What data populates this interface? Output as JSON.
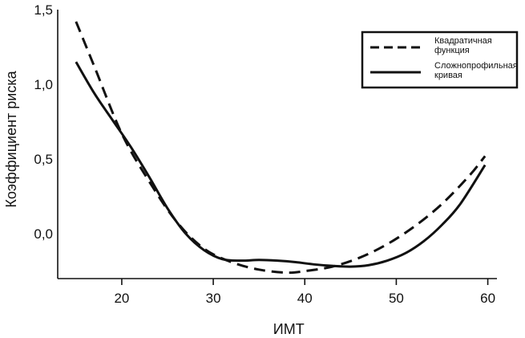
{
  "chart_data": {
    "type": "line",
    "title": "",
    "xlabel": "ИМТ",
    "ylabel": "Коэффициент риска",
    "xlim": [
      13,
      61
    ],
    "ylim": [
      -0.3,
      1.5
    ],
    "xticks": [
      20,
      30,
      40,
      50,
      60
    ],
    "yticks": [
      0.0,
      0.5,
      1.0,
      1.5
    ],
    "xtick_labels": [
      "20",
      "30",
      "40",
      "50",
      "60"
    ],
    "ytick_labels": [
      "0,0",
      "0,5",
      "1,0",
      "1,5"
    ],
    "grid": false,
    "legend_position": "top-right",
    "series": [
      {
        "name": "Квадратичная функция",
        "name_lines": [
          "Квадратичная",
          "функция"
        ],
        "style": "dashed",
        "color": "#111111",
        "x": [
          15,
          17,
          20,
          23,
          26,
          29,
          32,
          35,
          38,
          40,
          43,
          46,
          49,
          52,
          55,
          58,
          59.7
        ],
        "y": [
          1.42,
          1.12,
          0.67,
          0.35,
          0.08,
          -0.1,
          -0.19,
          -0.24,
          -0.26,
          -0.25,
          -0.22,
          -0.16,
          -0.07,
          0.05,
          0.2,
          0.39,
          0.52
        ]
      },
      {
        "name": "Сложнопрофильная кривая",
        "name_lines": [
          "Сложнопрофильная",
          "кривая"
        ],
        "style": "solid",
        "color": "#111111",
        "x": [
          15,
          17,
          19,
          21,
          23,
          25,
          27,
          29,
          31,
          33,
          35,
          37,
          39,
          41,
          43,
          45,
          47,
          49,
          51,
          53,
          55,
          57,
          59.7
        ],
        "y": [
          1.15,
          0.94,
          0.76,
          0.58,
          0.38,
          0.17,
          0.0,
          -0.11,
          -0.17,
          -0.18,
          -0.175,
          -0.18,
          -0.19,
          -0.205,
          -0.215,
          -0.22,
          -0.21,
          -0.18,
          -0.13,
          -0.05,
          0.06,
          0.2,
          0.46
        ]
      }
    ]
  }
}
